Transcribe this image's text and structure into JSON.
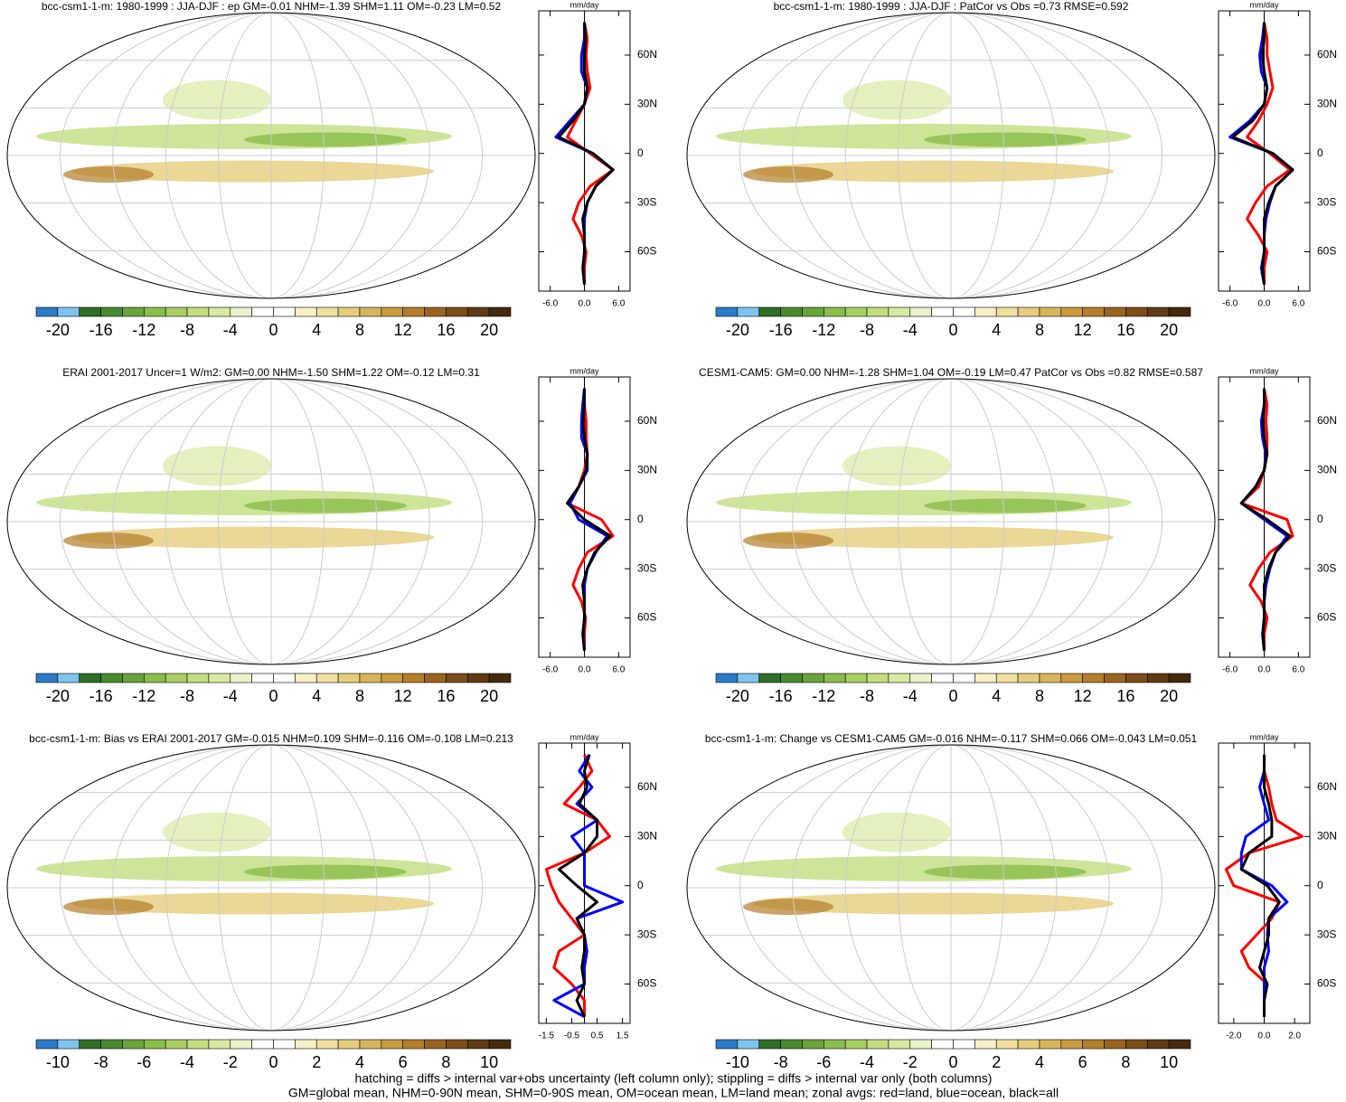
{
  "chart_data": [
    {
      "type": "map",
      "title": "bcc-csm1-1-m: 1980-1999 : JJA-DJF : ep GM=-0.01 NHM=-1.39 SHM=1.11 OM=-0.23 LM=0.52",
      "colorbar": {
        "clim": [
          -22,
          22
        ],
        "ticks": [
          -20,
          -16,
          -12,
          -8,
          -4,
          0,
          4,
          8,
          12,
          16,
          20
        ]
      },
      "zonal": {
        "xlabel": "mm/day",
        "xlim": [
          -8,
          8
        ],
        "xticks": [
          {
            "value": -6,
            "label": "-6.0"
          },
          {
            "value": 0,
            "label": "0.0"
          },
          {
            "value": 6,
            "label": "6.0"
          }
        ],
        "ylim": [
          -84,
          87
        ],
        "yticks": [
          {
            "value": 60,
            "label": "60N"
          },
          {
            "value": 30,
            "label": "30N"
          },
          0,
          {
            "value": -30,
            "label": "30S"
          },
          {
            "value": -60,
            "label": "60S"
          }
        ],
        "lats": [
          -80,
          -70,
          -60,
          -50,
          -40,
          -30,
          -20,
          -10,
          0,
          10,
          20,
          30,
          40,
          50,
          60,
          70,
          80
        ],
        "series": [
          {
            "color": "#ff0000",
            "values": [
              0,
              0,
              0.3,
              -0.5,
              -2,
              -1,
              1,
              5,
              1,
              -3,
              -1.5,
              0,
              1,
              0.5,
              0.3,
              0.5,
              0
            ]
          },
          {
            "color": "#0000ff",
            "values": [
              0,
              -0.3,
              0,
              0,
              0,
              0.5,
              2,
              5,
              1.5,
              -5,
              -2.5,
              0,
              0.5,
              -0.5,
              -0.5,
              0,
              0
            ]
          },
          {
            "color": "#000000",
            "values": [
              0,
              -0.2,
              0,
              0,
              -0.3,
              0.5,
              2,
              5,
              1.5,
              -4.5,
              -2,
              0,
              0.5,
              0,
              0,
              0.2,
              0
            ]
          }
        ]
      }
    },
    {
      "type": "map",
      "title": "bcc-csm1-1-m: 1980-1999 : JJA-DJF : PatCor vs Obs =0.73 RMSE=0.592",
      "colorbar": {
        "clim": [
          -22,
          22
        ],
        "ticks": [
          -20,
          -16,
          -12,
          -8,
          -4,
          0,
          4,
          8,
          12,
          16,
          20
        ]
      },
      "zonal": {
        "xlabel": "mm/day",
        "xlim": [
          -8,
          8
        ],
        "xticks": [
          {
            "value": -6,
            "label": "-6.0"
          },
          {
            "value": 0,
            "label": "0.0"
          },
          {
            "value": 6,
            "label": "6.0"
          }
        ],
        "ylim": [
          -84,
          87
        ],
        "yticks": [
          {
            "value": 60,
            "label": "60N"
          },
          {
            "value": 30,
            "label": "30N"
          },
          0,
          {
            "value": -30,
            "label": "30S"
          },
          {
            "value": -60,
            "label": "60S"
          }
        ],
        "lats": [
          -80,
          -70,
          -60,
          -50,
          -40,
          -30,
          -20,
          -10,
          0,
          10,
          20,
          30,
          40,
          50,
          60,
          70,
          80
        ],
        "series": [
          {
            "color": "#ff0000",
            "values": [
              0,
              0,
              0.5,
              -1,
              -3,
              -1.5,
              0.5,
              4.5,
              1,
              -3,
              -1,
              0.5,
              1.5,
              1,
              0.5,
              0.5,
              0
            ]
          },
          {
            "color": "#0000ff",
            "values": [
              0,
              -0.5,
              0,
              0,
              0.3,
              1,
              2,
              5,
              1.5,
              -6,
              -2.5,
              0,
              0.5,
              -0.5,
              -0.8,
              -0.3,
              0
            ]
          },
          {
            "color": "#000000",
            "values": [
              0,
              -0.3,
              0,
              0,
              0,
              0.8,
              2,
              5,
              1.5,
              -5.5,
              -2,
              0,
              0.5,
              0,
              -0.3,
              0,
              0
            ]
          }
        ]
      }
    },
    {
      "type": "map",
      "title": "ERAI 2001-2017 Uncer=1 W/m2: GM=0.00 NHM=-1.50 SHM=1.22 OM=-0.12 LM=0.31",
      "colorbar": {
        "clim": [
          -22,
          22
        ],
        "ticks": [
          -20,
          -16,
          -12,
          -8,
          -4,
          0,
          4,
          8,
          12,
          16,
          20
        ]
      },
      "zonal": {
        "xlabel": "mm/day",
        "xlim": [
          -8,
          8
        ],
        "xticks": [
          {
            "value": -6,
            "label": "-6.0"
          },
          {
            "value": 0,
            "label": "0.0"
          },
          {
            "value": 6,
            "label": "6.0"
          }
        ],
        "ylim": [
          -84,
          87
        ],
        "yticks": [
          {
            "value": 60,
            "label": "60N"
          },
          {
            "value": 30,
            "label": "30N"
          },
          0,
          {
            "value": -30,
            "label": "30S"
          },
          {
            "value": -60,
            "label": "60S"
          }
        ],
        "lats": [
          -80,
          -70,
          -60,
          -50,
          -40,
          -30,
          -20,
          -10,
          0,
          10,
          20,
          30,
          40,
          50,
          60,
          70,
          80
        ],
        "series": [
          {
            "color": "#ff0000",
            "values": [
              0,
              0,
              0.2,
              -0.5,
              -2,
              -1,
              0.5,
              5,
              3,
              -3,
              -1,
              0,
              0.5,
              0.3,
              0.3,
              0,
              0
            ]
          },
          {
            "color": "#0000ff",
            "values": [
              0,
              -0.3,
              0,
              0,
              0,
              0.5,
              2,
              4,
              -1,
              -2.5,
              -1,
              0.5,
              0.5,
              -0.5,
              -0.5,
              -0.3,
              0
            ]
          },
          {
            "color": "#000000",
            "values": [
              0,
              -0.2,
              0,
              0,
              -0.3,
              0.5,
              1.8,
              4.5,
              0,
              -3,
              -1,
              0.3,
              0.5,
              0,
              -0.2,
              0,
              0
            ]
          }
        ]
      }
    },
    {
      "type": "map",
      "title": "CESM1-CAM5: GM=0.00 NHM=-1.28 SHM=1.04 OM=-0.19 LM=0.47 PatCor vs Obs =0.82 RMSE=0.587",
      "colorbar": {
        "clim": [
          -22,
          22
        ],
        "ticks": [
          -20,
          -16,
          -12,
          -8,
          -4,
          0,
          4,
          8,
          12,
          16,
          20
        ]
      },
      "zonal": {
        "xlabel": "mm/day",
        "xlim": [
          -8,
          8
        ],
        "xticks": [
          {
            "value": -6,
            "label": "-6.0"
          },
          {
            "value": 0,
            "label": "0.0"
          },
          {
            "value": 6,
            "label": "6.0"
          }
        ],
        "ylim": [
          -84,
          87
        ],
        "yticks": [
          {
            "value": 60,
            "label": "60N"
          },
          {
            "value": 30,
            "label": "30N"
          },
          0,
          {
            "value": -30,
            "label": "30S"
          },
          {
            "value": -60,
            "label": "60S"
          }
        ],
        "lats": [
          -80,
          -70,
          -60,
          -50,
          -40,
          -30,
          -20,
          -10,
          0,
          10,
          20,
          30,
          40,
          50,
          60,
          70,
          80
        ],
        "series": [
          {
            "color": "#ff0000",
            "values": [
              0,
              0,
              0.5,
              -0.5,
              -2.5,
              -1,
              1,
              5,
              4,
              -4,
              -1,
              0,
              0.5,
              0.5,
              0.3,
              0.5,
              0
            ]
          },
          {
            "color": "#0000ff",
            "values": [
              0,
              -0.3,
              0,
              0,
              0.3,
              1,
              2,
              4,
              0,
              -4,
              -1.5,
              0,
              0.3,
              -0.3,
              -0.5,
              0,
              0
            ]
          },
          {
            "color": "#000000",
            "values": [
              0,
              -0.2,
              0,
              0,
              0,
              0.8,
              2,
              4.5,
              0.5,
              -4,
              -1.5,
              0,
              0.5,
              0,
              -0.2,
              0,
              0
            ]
          }
        ]
      }
    },
    {
      "type": "map",
      "title": "bcc-csm1-1-m: Bias vs ERAI 2001-2017 GM=-0.015 NHM=0.109 SHM=-0.116 OM=-0.108 LM=0.213",
      "colorbar": {
        "clim": [
          -11,
          11
        ],
        "ticks": [
          -10,
          -8,
          -6,
          -4,
          -2,
          0,
          2,
          4,
          6,
          8,
          10
        ]
      },
      "zonal": {
        "xlabel": "mm/day",
        "xlim": [
          -1.8,
          1.8
        ],
        "xticks": [
          -1.5,
          -0.5,
          0.5,
          1.5
        ],
        "ylim": [
          -84,
          87
        ],
        "yticks": [
          {
            "value": 60,
            "label": "60N"
          },
          {
            "value": 30,
            "label": "30N"
          },
          0,
          {
            "value": -30,
            "label": "30S"
          },
          {
            "value": -60,
            "label": "60S"
          }
        ],
        "lats": [
          -80,
          -70,
          -60,
          -50,
          -40,
          -30,
          -20,
          -10,
          0,
          10,
          20,
          30,
          40,
          50,
          60,
          70,
          80
        ],
        "series": [
          {
            "color": "#ff0000",
            "values": [
              0,
              0,
              -0.5,
              -1.2,
              -1,
              0,
              -0.5,
              -1,
              -1.3,
              -1.5,
              0,
              1,
              0.5,
              -0.8,
              -0.2,
              0.3,
              0
            ]
          },
          {
            "color": "#0000ff",
            "values": [
              0,
              -1.2,
              0,
              0,
              0.1,
              0,
              -0.3,
              1.5,
              0,
              0,
              0,
              -0.5,
              0.5,
              -0.3,
              0.3,
              -0.2,
              0.2
            ]
          },
          {
            "color": "#000000",
            "values": [
              0,
              -0.3,
              0,
              -0.1,
              0,
              0,
              -0.3,
              0.5,
              -0.3,
              -1,
              0,
              0.5,
              0.5,
              -0.2,
              0.1,
              0,
              0.2
            ]
          }
        ]
      }
    },
    {
      "type": "map",
      "title": "bcc-csm1-1-m: Change vs CESM1-CAM5 GM=-0.016 NHM=-0.117 SHM=0.066 OM=-0.043 LM=0.051",
      "colorbar": {
        "clim": [
          -11,
          11
        ],
        "ticks": [
          -10,
          -8,
          -6,
          -4,
          -2,
          0,
          2,
          4,
          6,
          8,
          10
        ]
      },
      "zonal": {
        "xlabel": "mm/day",
        "xlim": [
          -3,
          3
        ],
        "xticks": [
          {
            "value": -2,
            "label": "-2.0"
          },
          {
            "value": 0,
            "label": "0.0"
          },
          {
            "value": 2,
            "label": "2.0"
          }
        ],
        "ylim": [
          -84,
          87
        ],
        "yticks": [
          {
            "value": 60,
            "label": "60N"
          },
          {
            "value": 30,
            "label": "30N"
          },
          0,
          {
            "value": -30,
            "label": "30S"
          },
          {
            "value": -60,
            "label": "60S"
          }
        ],
        "lats": [
          -80,
          -70,
          -60,
          -50,
          -40,
          -30,
          -20,
          -10,
          0,
          10,
          20,
          30,
          40,
          50,
          60,
          70,
          80
        ],
        "series": [
          {
            "color": "#ff0000",
            "values": [
              0,
              0,
              0.2,
              -1,
              -1.5,
              -0.5,
              0.5,
              1,
              -2,
              -2.5,
              -1,
              2.5,
              0.8,
              0.5,
              0.3,
              0,
              0
            ]
          },
          {
            "color": "#0000ff",
            "values": [
              0,
              0,
              0,
              0,
              0.3,
              0.2,
              0.3,
              1.5,
              0.5,
              -1.5,
              -1.5,
              -1.2,
              0.3,
              0,
              -0.3,
              0,
              0
            ]
          },
          {
            "color": "#000000",
            "values": [
              0,
              0,
              0.2,
              -0.3,
              0,
              0.3,
              0.3,
              1,
              0.2,
              -1.5,
              -1,
              0.5,
              0.5,
              0.3,
              0,
              0,
              0
            ]
          }
        ]
      }
    }
  ],
  "palette": [
    "#2b7bc8",
    "#7fc4ef",
    "#2e6e27",
    "#4a8a2e",
    "#6aa33a",
    "#8bbd4a",
    "#a8cf62",
    "#c2de7f",
    "#d8e9a2",
    "#ebf3cc",
    "#ffffff",
    "#ffffff",
    "#f7efc6",
    "#f0e0a0",
    "#e6cd7c",
    "#d9b45a",
    "#c99a3e",
    "#b47e2a",
    "#9a6420",
    "#7e4c18",
    "#5f3a14",
    "#45290e"
  ],
  "notes": [
    "hatching = diffs > internal var+obs uncertainty (left column only); stippling = diffs > internal var only (both columns)",
    "GM=global mean, NHM=0-90N mean, SHM=0-90S mean, OM=ocean mean, LM=land mean; zonal avgs: red=land, blue=ocean, black=all"
  ]
}
